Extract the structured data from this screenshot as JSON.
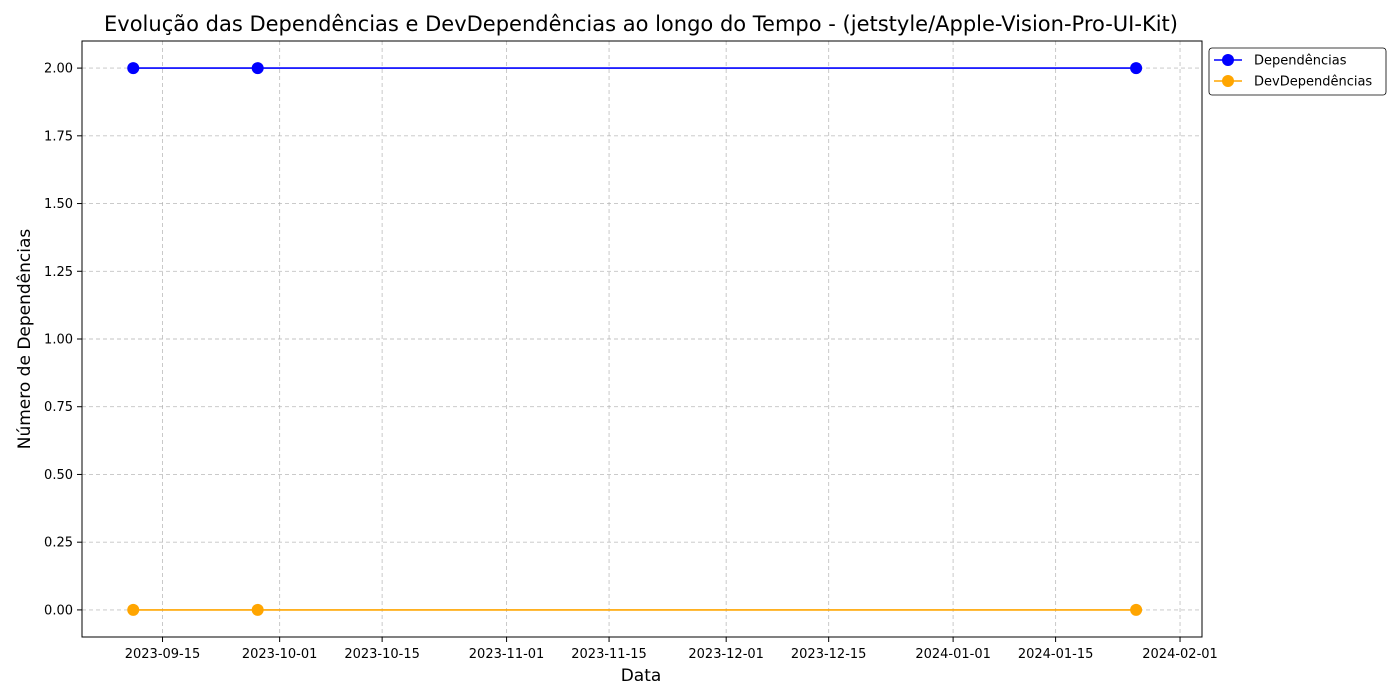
{
  "chart_data": {
    "type": "line",
    "title": "Evolução das Dependências e DevDependências ao longo do Tempo - (jetstyle/Apple-Vision-Pro-UI-Kit)",
    "xlabel": "Data",
    "ylabel": "Número de Dependências",
    "x": [
      "2023-09-11",
      "2023-09-28",
      "2024-01-26"
    ],
    "xlim": [
      "2023-09-04",
      "2024-02-04"
    ],
    "ylim": [
      -0.1,
      2.1
    ],
    "x_ticks": [
      "2023-09-15",
      "2023-10-01",
      "2023-10-15",
      "2023-11-01",
      "2023-11-15",
      "2023-12-01",
      "2023-12-15",
      "2024-01-01",
      "2024-01-15",
      "2024-02-01"
    ],
    "y_ticks": [
      "0.00",
      "0.25",
      "0.50",
      "0.75",
      "1.00",
      "1.25",
      "1.50",
      "1.75",
      "2.00"
    ],
    "grid": true,
    "legend_position": "outside-top-right",
    "series": [
      {
        "name": "Dependências",
        "values": [
          2,
          2,
          2
        ],
        "color": "#0000ff"
      },
      {
        "name": "DevDependências",
        "values": [
          0,
          0,
          0
        ],
        "color": "#ffa500"
      }
    ]
  }
}
